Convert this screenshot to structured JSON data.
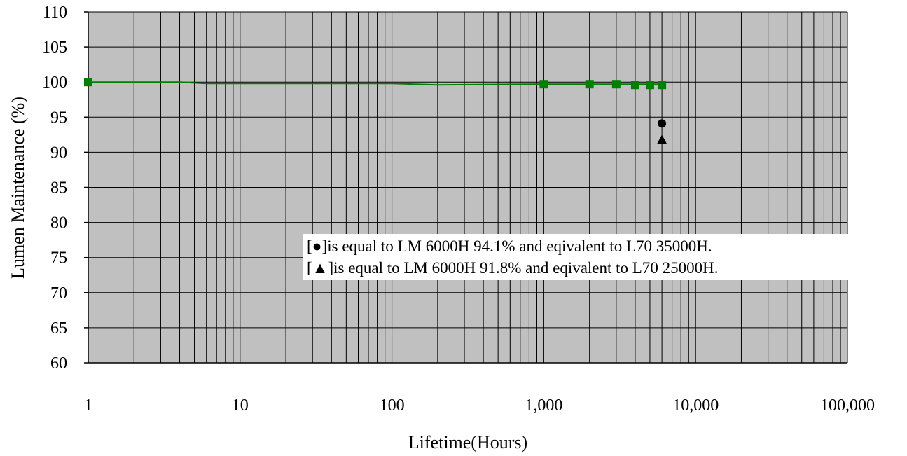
{
  "chart_data": {
    "type": "line",
    "title": "",
    "xlabel": "Lifetime(Hours)",
    "ylabel": "Lumen Maintenance (%)",
    "x_scale": "log",
    "xlim": [
      1,
      100000
    ],
    "ylim": [
      60,
      110
    ],
    "x_ticks": [
      {
        "value": 1,
        "label": "1"
      },
      {
        "value": 10,
        "label": "10"
      },
      {
        "value": 100,
        "label": "100"
      },
      {
        "value": 1000,
        "label": "1,000"
      },
      {
        "value": 10000,
        "label": "10,000"
      },
      {
        "value": 100000,
        "label": "100,000"
      }
    ],
    "y_ticks": [
      60,
      65,
      70,
      75,
      80,
      85,
      90,
      95,
      100,
      105,
      110
    ],
    "grid": true,
    "plot_background": "#c0c0c0",
    "series": [
      {
        "color": "#008000",
        "marker": "square",
        "line": [
          {
            "x": 1,
            "y": 100.0
          },
          {
            "x": 4,
            "y": 100.0
          },
          {
            "x": 6,
            "y": 99.8
          },
          {
            "x": 100,
            "y": 99.8
          },
          {
            "x": 200,
            "y": 99.6
          },
          {
            "x": 1000,
            "y": 99.7
          },
          {
            "x": 6000,
            "y": 99.7
          }
        ],
        "markers": [
          {
            "x": 1,
            "y": 100.0
          },
          {
            "x": 1000,
            "y": 99.7
          },
          {
            "x": 2000,
            "y": 99.7
          },
          {
            "x": 3000,
            "y": 99.7
          },
          {
            "x": 4000,
            "y": 99.6
          },
          {
            "x": 5000,
            "y": 99.6
          },
          {
            "x": 6000,
            "y": 99.6
          }
        ]
      },
      {
        "color": "#000000",
        "marker": "circle",
        "markers": [
          {
            "x": 6000,
            "y": 94.1
          }
        ]
      },
      {
        "color": "#000000",
        "marker": "triangle",
        "markers": [
          {
            "x": 6000,
            "y": 91.8
          }
        ]
      }
    ],
    "legend": {
      "placement": "center-right",
      "entries": [
        {
          "symbol": "●",
          "text_open": "[",
          "text_close": "]is equal to LM 6000H 94.1% and eqivalent to L70 35000H."
        },
        {
          "symbol": "▲",
          "text_open": "[",
          "text_close": "]is equal to LM 6000H 91.8% and eqivalent to L70 25000H."
        }
      ]
    }
  }
}
